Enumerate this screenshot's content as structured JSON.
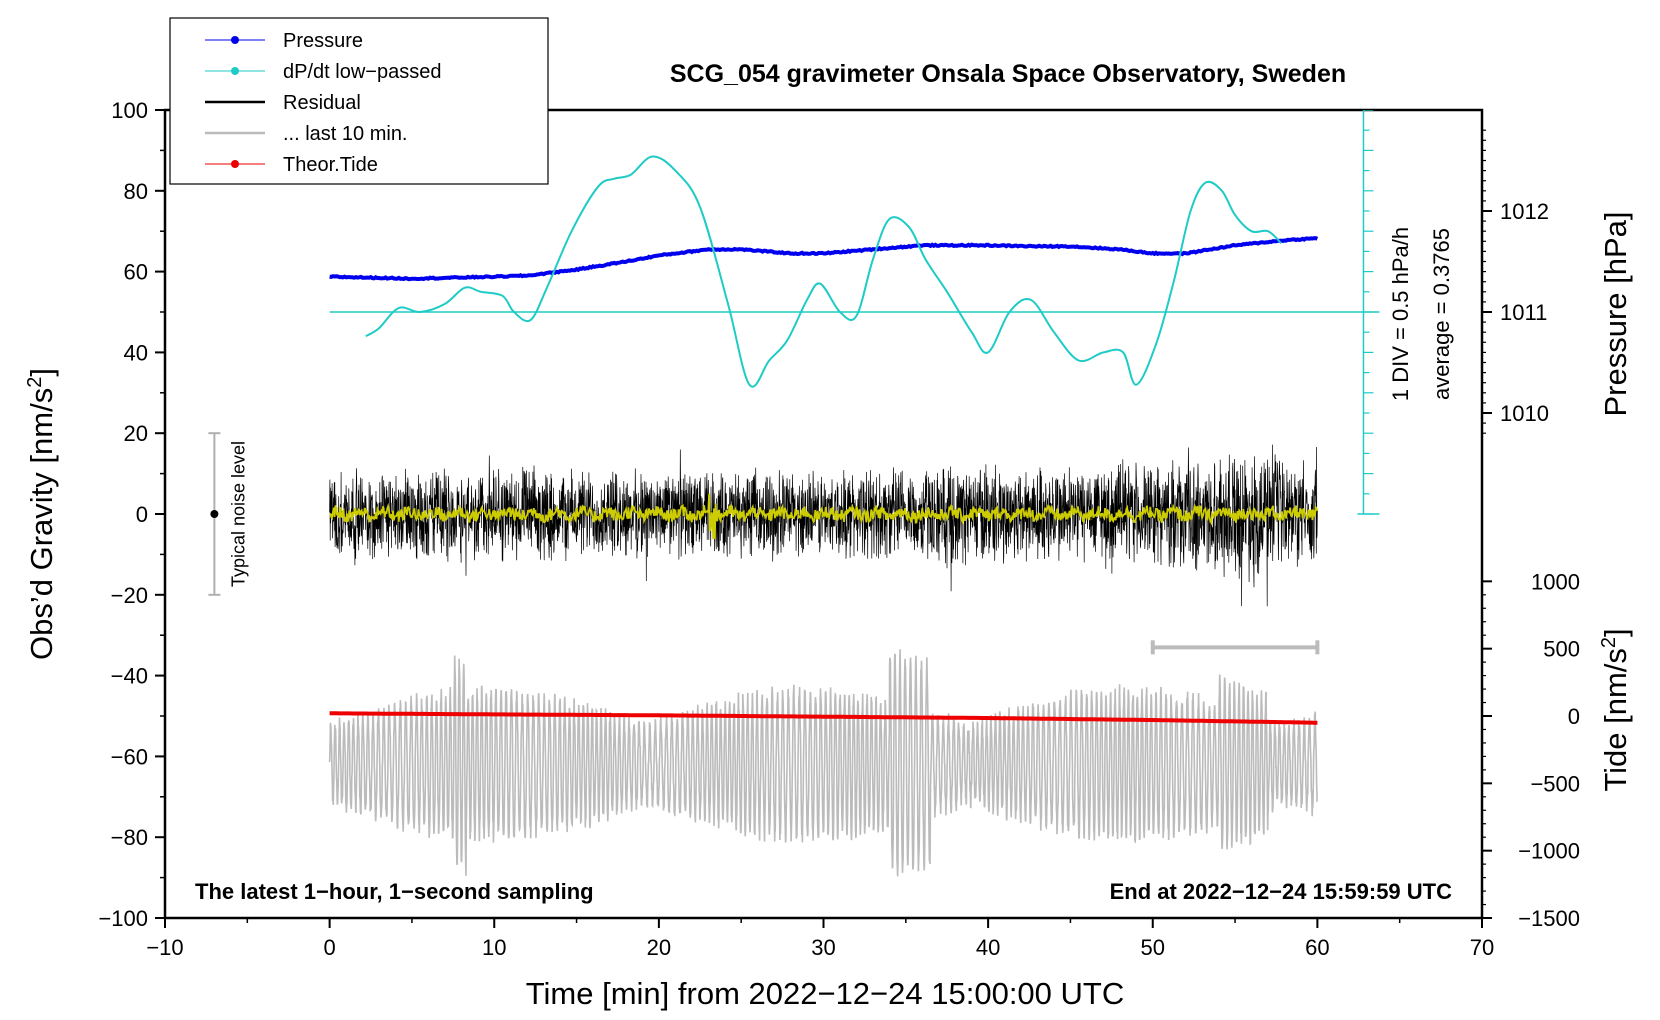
{
  "chart_data": {
    "type": "line",
    "title": "SCG_054 gravimeter Onsala Space Observatory, Sweden",
    "xlabel": "Time [min] from 2022−12−24 15:00:00 UTC",
    "ylabel_left": "Obs’d Gravity [nm/s",
    "ylabel_left_sup": "2",
    "ylabel_left_end": "]",
    "ylabel_right_pressure": "Pressure [hPa]",
    "ylabel_right_tide": "Tide [nm/s",
    "ylabel_right_tide_sup": "2",
    "ylabel_right_tide_end": "]",
    "xlim": [
      -10,
      70
    ],
    "ylim": [
      -100,
      100
    ],
    "x_ticks": [
      "−10",
      "0",
      "10",
      "20",
      "30",
      "40",
      "50",
      "60",
      "70"
    ],
    "y_ticks": [
      "−100",
      "−80",
      "−60",
      "−40",
      "−20",
      "0",
      "20",
      "40",
      "60",
      "80",
      "100"
    ],
    "pressure_ticks": [
      "1010",
      "1011",
      "1012"
    ],
    "tide_ticks": [
      "−1500",
      "−1000",
      "−500",
      "0",
      "500",
      "1000"
    ],
    "corner_left": "The latest 1−hour, 1−second sampling",
    "corner_right": "End at 2022−12−24 15:59:59 UTC",
    "noise_label": "Typical noise level",
    "dpdt_scale_label": "1 DIV = 0.5 hPa/h",
    "dpdt_average_label": "average = 0.3765",
    "legend": [
      {
        "label": "Pressure",
        "color": "#0000ee",
        "style": "line-dot"
      },
      {
        "label": "dP/dt low−passed",
        "color": "#1ecbc6",
        "style": "line-dot"
      },
      {
        "label": "Residual",
        "color": "#000000",
        "style": "line"
      },
      {
        "label": "... last 10 min.",
        "color": "#bbbbbb",
        "style": "line"
      },
      {
        "label": "Theor.Tide",
        "color": "#ee0000",
        "style": "line-dot"
      }
    ],
    "series": [
      {
        "name": "Pressure",
        "unit": "hPa",
        "color": "#0000ee",
        "x": [
          0,
          5,
          10,
          12,
          15,
          18,
          20,
          23,
          25,
          28,
          30,
          33,
          36,
          40,
          43,
          45,
          48,
          50,
          52,
          55,
          58,
          60
        ],
        "values": [
          1011.35,
          1011.33,
          1011.35,
          1011.36,
          1011.42,
          1011.5,
          1011.56,
          1011.62,
          1011.62,
          1011.58,
          1011.58,
          1011.62,
          1011.66,
          1011.66,
          1011.65,
          1011.65,
          1011.62,
          1011.58,
          1011.58,
          1011.66,
          1011.71,
          1011.73
        ]
      },
      {
        "name": "dP/dt low-passed",
        "unit": "gravity-axis scale (avg 0.3765 hPa/h)",
        "color": "#1ecbc6",
        "x": [
          2.2,
          3,
          4.2,
          5.5,
          7,
          8.2,
          9.2,
          10.5,
          11.2,
          12.2,
          13.2,
          14.7,
          16.3,
          17.3,
          18.3,
          19.6,
          21,
          22.5,
          24.2,
          25.5,
          26.7,
          27.8,
          29,
          29.8,
          31,
          32,
          33,
          34,
          35.2,
          36.2,
          37.5,
          39,
          40,
          41.3,
          42.6,
          44,
          45.5,
          47,
          48.2,
          49,
          50.2,
          51.3,
          52.3,
          53.2,
          54.2,
          55,
          56,
          57,
          57.8
        ],
        "values": [
          44,
          46,
          51,
          50,
          52,
          56,
          55,
          54,
          50,
          48,
          56,
          70,
          81,
          83,
          84,
          88.5,
          85,
          76,
          52,
          32,
          38,
          43,
          53,
          57,
          50,
          49,
          63,
          73,
          71,
          63,
          55,
          45,
          40,
          50,
          53,
          45,
          38,
          40,
          40,
          32,
          42,
          58,
          75,
          82,
          80,
          74,
          70,
          70,
          67
        ]
      },
      {
        "name": "Theor.Tide",
        "unit": "nm/s2",
        "color": "#ee0000",
        "x": [
          0,
          10,
          20,
          30,
          40,
          50,
          55,
          60
        ],
        "values": [
          20,
          12,
          5,
          -5,
          -15,
          -30,
          -40,
          -50
        ]
      },
      {
        "name": "Residual",
        "unit": "nm/s2",
        "color": "#000000",
        "x": [
          0,
          10,
          20,
          30,
          40,
          50,
          54,
          56,
          60
        ],
        "envelope": [
          12,
          13,
          12,
          12,
          14,
          14,
          16,
          18,
          13
        ]
      },
      {
        "name": "... last 10 min.",
        "unit": "nm/s2 (stretched x)",
        "color": "#bbbbbb",
        "x": [
          50,
          60
        ],
        "values": [
          -62,
          -62
        ]
      }
    ],
    "dpdt_baseline": 50,
    "noise_level": [
      -20,
      20
    ],
    "last10_bracket_x": [
      50,
      60
    ],
    "last10_bracket_y": -33
  }
}
